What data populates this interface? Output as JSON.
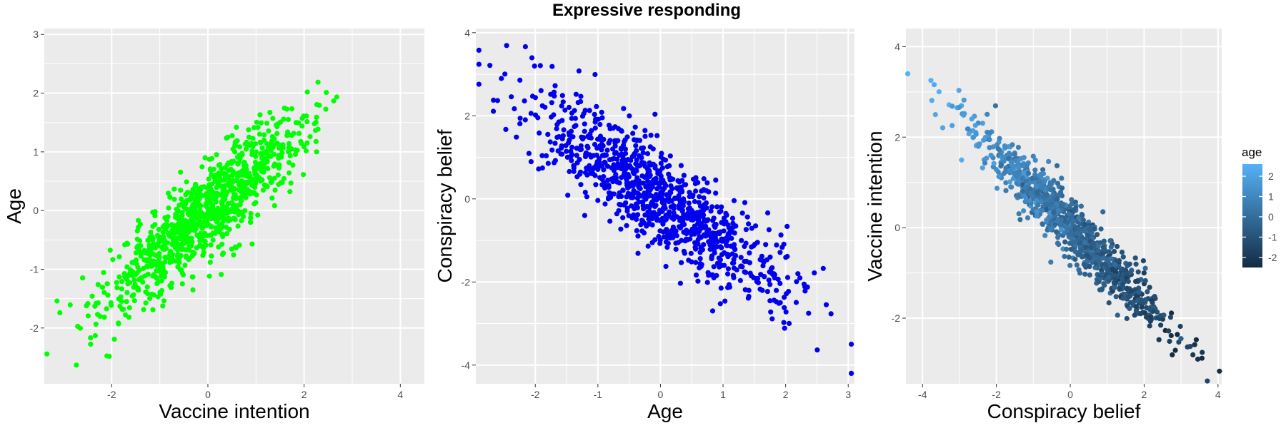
{
  "figure": {
    "title": "Expressive responding"
  },
  "chart_data": [
    {
      "type": "scatter",
      "title": "",
      "xlabel": "Vaccine intention",
      "ylabel": "Age",
      "xlim": [
        -3.4,
        4.5
      ],
      "ylim": [
        -2.95,
        3.1
      ],
      "x_ticks": [
        -2,
        0,
        2,
        4
      ],
      "y_ticks": [
        -2,
        -1,
        0,
        1,
        2,
        3
      ],
      "color": "#00ff00",
      "grid": true,
      "n_points": 1000,
      "relationship": {
        "x_mean": 0,
        "x_sd": 1.05,
        "slope": 0.68,
        "intercept": 0,
        "residual_sd": 0.38
      }
    },
    {
      "type": "scatter",
      "title": "",
      "xlabel": "Age",
      "ylabel": "Conspiracy belief",
      "xlim": [
        -2.95,
        3.1
      ],
      "ylim": [
        -4.45,
        4.1
      ],
      "x_ticks": [
        -2,
        -1,
        0,
        1,
        2,
        3
      ],
      "y_ticks": [
        -4,
        -2,
        0,
        2,
        4
      ],
      "color": "#0000ee",
      "grid": true,
      "n_points": 1000,
      "relationship": {
        "x_mean": 0,
        "x_sd": 1.0,
        "slope": -1.05,
        "intercept": 0,
        "residual_sd": 0.6
      }
    },
    {
      "type": "scatter",
      "title": "",
      "xlabel": "Conspiracy belief",
      "ylabel": "Vaccine intention",
      "xlim": [
        -4.45,
        4.1
      ],
      "ylim": [
        -3.45,
        4.4
      ],
      "x_ticks": [
        -4,
        -2,
        0,
        2,
        4
      ],
      "y_ticks": [
        -2,
        0,
        2,
        4
      ],
      "grid": true,
      "n_points": 1000,
      "relationship": {
        "x_mean": 0,
        "x_sd": 1.35,
        "slope": -0.82,
        "intercept": 0,
        "residual_sd": 0.32
      },
      "color_by": "age",
      "legend": {
        "title": "age",
        "position": "right",
        "range": [
          -2.5,
          2.6
        ],
        "ticks": [
          -2,
          -1,
          0,
          1,
          2
        ],
        "low_color": "#132b43",
        "high_color": "#56b1f7"
      }
    }
  ]
}
